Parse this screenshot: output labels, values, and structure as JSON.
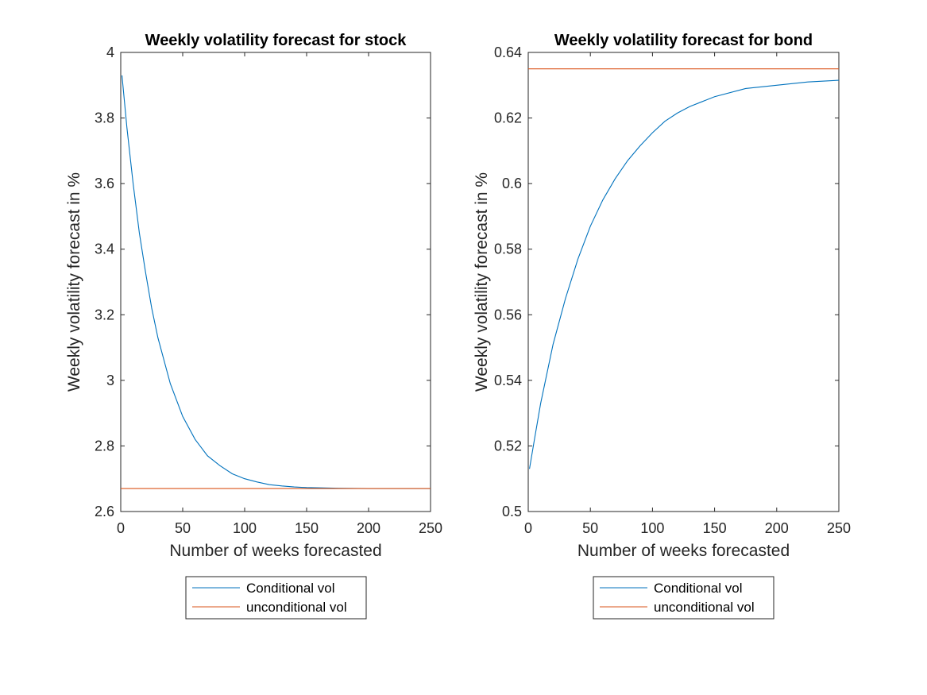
{
  "chart_data": [
    {
      "type": "line",
      "title": "Weekly volatility forecast for stock",
      "xlabel": "Number of weeks forecasted",
      "ylabel": "Weekly volatility forecast in %",
      "xlim": [
        0,
        250
      ],
      "ylim": [
        2.6,
        4
      ],
      "xticks": [
        "0",
        "50",
        "100",
        "150",
        "200",
        "250"
      ],
      "yticks": [
        "2.6",
        "2.8",
        "3",
        "3.2",
        "3.4",
        "3.6",
        "3.8",
        "4"
      ],
      "grid": false,
      "legend_position": "below",
      "series": [
        {
          "name": "Conditional vol",
          "color": "#0072BD",
          "x": [
            1,
            5,
            10,
            15,
            20,
            25,
            30,
            40,
            50,
            60,
            70,
            80,
            90,
            100,
            110,
            120,
            130,
            140,
            150,
            175,
            200,
            225,
            250
          ],
          "y": [
            3.93,
            3.77,
            3.6,
            3.45,
            3.33,
            3.22,
            3.13,
            2.99,
            2.89,
            2.82,
            2.77,
            2.74,
            2.715,
            2.7,
            2.69,
            2.682,
            2.678,
            2.675,
            2.673,
            2.671,
            2.67,
            2.67,
            2.67
          ]
        },
        {
          "name": "unconditional vol",
          "color": "#D95319",
          "x": [
            0,
            250
          ],
          "y": [
            2.67,
            2.67
          ]
        }
      ]
    },
    {
      "type": "line",
      "title": "Weekly volatility forecast for bond",
      "xlabel": "Number of weeks forecasted",
      "ylabel": "Weekly volatility forecast in %",
      "xlim": [
        0,
        250
      ],
      "ylim": [
        0.5,
        0.64
      ],
      "xticks": [
        "0",
        "50",
        "100",
        "150",
        "200",
        "250"
      ],
      "yticks": [
        "0.5",
        "0.52",
        "0.54",
        "0.56",
        "0.58",
        "0.6",
        "0.62",
        "0.64"
      ],
      "grid": false,
      "legend_position": "below",
      "series": [
        {
          "name": "Conditional vol",
          "color": "#0072BD",
          "x": [
            1,
            5,
            10,
            20,
            30,
            40,
            50,
            60,
            70,
            80,
            90,
            100,
            110,
            120,
            130,
            140,
            150,
            175,
            200,
            225,
            250
          ],
          "y": [
            0.513,
            0.522,
            0.533,
            0.551,
            0.565,
            0.577,
            0.587,
            0.595,
            0.6015,
            0.607,
            0.6115,
            0.6155,
            0.619,
            0.6215,
            0.6235,
            0.625,
            0.6265,
            0.629,
            0.63,
            0.631,
            0.6315
          ]
        },
        {
          "name": "unconditional vol",
          "color": "#D95319",
          "x": [
            0,
            250
          ],
          "y": [
            0.635,
            0.635
          ]
        }
      ]
    }
  ]
}
